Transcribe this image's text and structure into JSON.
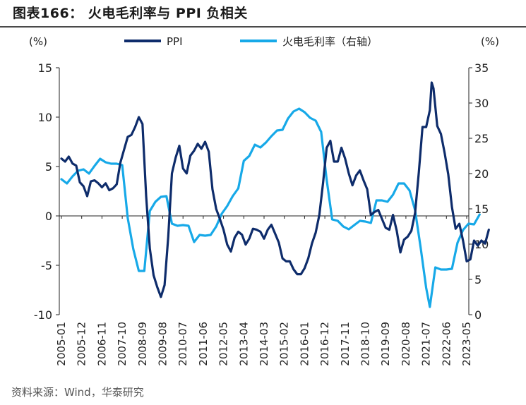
{
  "title": "图表166： 火电毛利率与 PPI 负相关",
  "source": "资料来源：Wind，华泰研究",
  "colors": {
    "ppi": "#0E2C6B",
    "margin": "#17A9E8"
  },
  "chart_data": {
    "type": "line",
    "left_axis": {
      "unit": "(%)",
      "ticks": [
        "15",
        "10",
        "5",
        "0",
        "-5",
        "-10"
      ],
      "ylim": [
        -10,
        15
      ]
    },
    "right_axis": {
      "unit": "(%)",
      "ticks": [
        "35",
        "30",
        "25",
        "20",
        "15",
        "10",
        "5",
        "0"
      ],
      "ylim": [
        0,
        35
      ]
    },
    "x_tick_labels": [
      "2005-01",
      "2005-12",
      "2006-11",
      "2007-10",
      "2008-09",
      "2009-08",
      "2010-07",
      "2011-06",
      "2012-05",
      "2013-04",
      "2014-03",
      "2015-02",
      "2016-01",
      "2016-12",
      "2017-11",
      "2018-10",
      "2019-09",
      "2020-08",
      "2021-07",
      "2022-06",
      "2023-05"
    ],
    "legend": {
      "placement": "top-center",
      "entries": [
        "PPI",
        "火电毛利率（右轴）"
      ]
    },
    "series": [
      {
        "name": "PPI",
        "axis": "left",
        "points": [
          [
            "2005-01",
            5.8
          ],
          [
            "2005-03",
            5.5
          ],
          [
            "2005-05",
            6.0
          ],
          [
            "2005-07",
            5.3
          ],
          [
            "2005-09",
            5.1
          ],
          [
            "2005-11",
            3.4
          ],
          [
            "2006-01",
            3.0
          ],
          [
            "2006-03",
            2.0
          ],
          [
            "2006-05",
            3.5
          ],
          [
            "2006-07",
            3.6
          ],
          [
            "2006-09",
            3.3
          ],
          [
            "2006-11",
            2.9
          ],
          [
            "2007-01",
            3.3
          ],
          [
            "2007-03",
            2.6
          ],
          [
            "2007-05",
            2.8
          ],
          [
            "2007-07",
            3.2
          ],
          [
            "2007-09",
            5.4
          ],
          [
            "2007-11",
            6.7
          ],
          [
            "2008-01",
            8.0
          ],
          [
            "2008-03",
            8.2
          ],
          [
            "2008-05",
            9.0
          ],
          [
            "2008-07",
            10.0
          ],
          [
            "2008-09",
            9.3
          ],
          [
            "2008-11",
            2.0
          ],
          [
            "2009-01",
            -3.3
          ],
          [
            "2009-03",
            -6.0
          ],
          [
            "2009-05",
            -7.2
          ],
          [
            "2009-07",
            -8.2
          ],
          [
            "2009-09",
            -7.0
          ],
          [
            "2009-11",
            -2.1
          ],
          [
            "2010-01",
            4.3
          ],
          [
            "2010-03",
            5.9
          ],
          [
            "2010-05",
            7.1
          ],
          [
            "2010-07",
            4.8
          ],
          [
            "2010-09",
            4.3
          ],
          [
            "2010-11",
            6.1
          ],
          [
            "2011-01",
            6.6
          ],
          [
            "2011-03",
            7.3
          ],
          [
            "2011-05",
            6.8
          ],
          [
            "2011-07",
            7.5
          ],
          [
            "2011-09",
            6.5
          ],
          [
            "2011-11",
            2.7
          ],
          [
            "2012-01",
            0.7
          ],
          [
            "2012-03",
            -0.3
          ],
          [
            "2012-05",
            -1.4
          ],
          [
            "2012-07",
            -2.9
          ],
          [
            "2012-09",
            -3.6
          ],
          [
            "2012-11",
            -2.2
          ],
          [
            "2013-01",
            -1.6
          ],
          [
            "2013-03",
            -1.9
          ],
          [
            "2013-05",
            -2.9
          ],
          [
            "2013-07",
            -2.3
          ],
          [
            "2013-09",
            -1.3
          ],
          [
            "2013-11",
            -1.4
          ],
          [
            "2014-01",
            -1.6
          ],
          [
            "2014-03",
            -2.3
          ],
          [
            "2014-05",
            -1.4
          ],
          [
            "2014-07",
            -0.9
          ],
          [
            "2014-09",
            -1.8
          ],
          [
            "2014-11",
            -2.7
          ],
          [
            "2015-01",
            -4.3
          ],
          [
            "2015-03",
            -4.6
          ],
          [
            "2015-05",
            -4.6
          ],
          [
            "2015-07",
            -5.4
          ],
          [
            "2015-09",
            -5.9
          ],
          [
            "2015-11",
            -5.9
          ],
          [
            "2016-01",
            -5.3
          ],
          [
            "2016-03",
            -4.3
          ],
          [
            "2016-05",
            -2.8
          ],
          [
            "2016-07",
            -1.7
          ],
          [
            "2016-09",
            0.1
          ],
          [
            "2016-11",
            3.3
          ],
          [
            "2017-01",
            6.9
          ],
          [
            "2017-03",
            7.6
          ],
          [
            "2017-05",
            5.5
          ],
          [
            "2017-07",
            5.5
          ],
          [
            "2017-09",
            6.9
          ],
          [
            "2017-11",
            5.8
          ],
          [
            "2018-01",
            4.3
          ],
          [
            "2018-03",
            3.1
          ],
          [
            "2018-05",
            4.1
          ],
          [
            "2018-07",
            4.6
          ],
          [
            "2018-09",
            3.6
          ],
          [
            "2018-11",
            2.7
          ],
          [
            "2019-01",
            0.1
          ],
          [
            "2019-03",
            0.4
          ],
          [
            "2019-05",
            0.6
          ],
          [
            "2019-07",
            -0.3
          ],
          [
            "2019-09",
            -1.2
          ],
          [
            "2019-11",
            -1.4
          ],
          [
            "2020-01",
            0.1
          ],
          [
            "2020-03",
            -1.5
          ],
          [
            "2020-05",
            -3.7
          ],
          [
            "2020-07",
            -2.4
          ],
          [
            "2020-09",
            -2.1
          ],
          [
            "2020-11",
            -1.5
          ],
          [
            "2021-01",
            0.3
          ],
          [
            "2021-03",
            4.4
          ],
          [
            "2021-05",
            9.0
          ],
          [
            "2021-07",
            9.0
          ],
          [
            "2021-09",
            10.7
          ],
          [
            "2021-10",
            13.5
          ],
          [
            "2021-11",
            12.9
          ],
          [
            "2022-01",
            9.1
          ],
          [
            "2022-03",
            8.3
          ],
          [
            "2022-05",
            6.4
          ],
          [
            "2022-07",
            4.2
          ],
          [
            "2022-09",
            0.9
          ],
          [
            "2022-11",
            -1.3
          ],
          [
            "2023-01",
            -0.8
          ],
          [
            "2023-03",
            -2.5
          ],
          [
            "2023-05",
            -4.6
          ],
          [
            "2023-07",
            -4.4
          ],
          [
            "2023-09",
            -2.5
          ],
          [
            "2023-11",
            -3.0
          ],
          [
            "2024-01",
            -2.5
          ],
          [
            "2024-03",
            -2.8
          ],
          [
            "2024-05",
            -1.4
          ]
        ]
      },
      {
        "name": "火电毛利率（右轴）",
        "axis": "right",
        "points": [
          [
            "2005-01",
            19.2
          ],
          [
            "2005-04",
            18.6
          ],
          [
            "2005-07",
            19.6
          ],
          [
            "2005-10",
            20.4
          ],
          [
            "2006-01",
            20.6
          ],
          [
            "2006-04",
            20.0
          ],
          [
            "2006-07",
            21.1
          ],
          [
            "2006-10",
            22.1
          ],
          [
            "2007-01",
            21.6
          ],
          [
            "2007-04",
            21.4
          ],
          [
            "2007-07",
            21.4
          ],
          [
            "2007-10",
            21.2
          ],
          [
            "2008-01",
            13.7
          ],
          [
            "2008-04",
            9.3
          ],
          [
            "2008-07",
            6.2
          ],
          [
            "2008-10",
            6.2
          ],
          [
            "2009-01",
            14.7
          ],
          [
            "2009-04",
            16.0
          ],
          [
            "2009-07",
            16.7
          ],
          [
            "2009-10",
            16.8
          ],
          [
            "2010-01",
            12.9
          ],
          [
            "2010-04",
            12.6
          ],
          [
            "2010-07",
            12.7
          ],
          [
            "2010-10",
            12.6
          ],
          [
            "2011-01",
            10.3
          ],
          [
            "2011-04",
            11.3
          ],
          [
            "2011-07",
            11.2
          ],
          [
            "2011-10",
            11.3
          ],
          [
            "2012-01",
            12.5
          ],
          [
            "2012-04",
            14.3
          ],
          [
            "2012-07",
            15.4
          ],
          [
            "2012-10",
            16.8
          ],
          [
            "2013-01",
            17.9
          ],
          [
            "2013-04",
            21.8
          ],
          [
            "2013-07",
            22.5
          ],
          [
            "2013-10",
            24.1
          ],
          [
            "2014-01",
            23.7
          ],
          [
            "2014-04",
            24.4
          ],
          [
            "2014-07",
            25.3
          ],
          [
            "2014-10",
            26.1
          ],
          [
            "2015-01",
            26.2
          ],
          [
            "2015-04",
            27.8
          ],
          [
            "2015-07",
            28.8
          ],
          [
            "2015-10",
            29.2
          ],
          [
            "2016-01",
            28.7
          ],
          [
            "2016-04",
            27.9
          ],
          [
            "2016-07",
            27.5
          ],
          [
            "2016-10",
            25.9
          ],
          [
            "2017-01",
            19.1
          ],
          [
            "2017-04",
            13.5
          ],
          [
            "2017-07",
            13.3
          ],
          [
            "2017-10",
            12.5
          ],
          [
            "2018-01",
            12.1
          ],
          [
            "2018-04",
            12.7
          ],
          [
            "2018-07",
            13.3
          ],
          [
            "2018-10",
            13.2
          ],
          [
            "2019-01",
            13.0
          ],
          [
            "2019-04",
            16.2
          ],
          [
            "2019-07",
            16.2
          ],
          [
            "2019-10",
            16.0
          ],
          [
            "2020-01",
            17.0
          ],
          [
            "2020-04",
            18.6
          ],
          [
            "2020-07",
            18.6
          ],
          [
            "2020-10",
            17.6
          ],
          [
            "2021-01",
            14.8
          ],
          [
            "2021-04",
            9.5
          ],
          [
            "2021-07",
            3.8
          ],
          [
            "2021-09",
            1.1
          ],
          [
            "2021-12",
            6.7
          ],
          [
            "2022-03",
            6.4
          ],
          [
            "2022-06",
            6.4
          ],
          [
            "2022-09",
            6.5
          ],
          [
            "2022-12",
            10.2
          ],
          [
            "2023-03",
            12.0
          ],
          [
            "2023-06",
            12.9
          ],
          [
            "2023-09",
            12.8
          ],
          [
            "2023-12",
            14.2
          ]
        ]
      }
    ]
  }
}
